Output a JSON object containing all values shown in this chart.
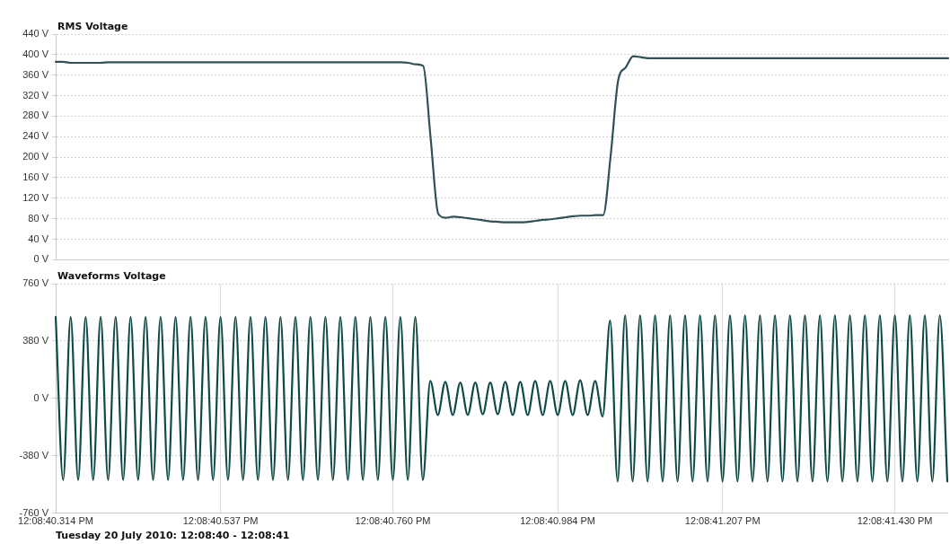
{
  "chart_data": [
    {
      "type": "line",
      "title": "RMS Voltage",
      "tick_labels": "y",
      "grid": "y",
      "marker": "none",
      "line_style": "solid",
      "categories": [
        null,
        null,
        null,
        null,
        null,
        null,
        null,
        null,
        null,
        null,
        null,
        null,
        null,
        null,
        null,
        null,
        null,
        null,
        null,
        null,
        null,
        null,
        null,
        null,
        null,
        null,
        null,
        null,
        null,
        null,
        null,
        null,
        null,
        null,
        null,
        null,
        null,
        null,
        null,
        null,
        null,
        null,
        null,
        null,
        null,
        null,
        null,
        null,
        null,
        null,
        null,
        null,
        null,
        null,
        null,
        null,
        null,
        null,
        null,
        null,
        null,
        null,
        null,
        null,
        null,
        null,
        null,
        null,
        null,
        null,
        null,
        null,
        null,
        null,
        null,
        null,
        null,
        null,
        null,
        null,
        null,
        null,
        null,
        null,
        null,
        null,
        null,
        null,
        null,
        null,
        null,
        null,
        null,
        null,
        null,
        null,
        null,
        null,
        null,
        null,
        null,
        null,
        null,
        null,
        null,
        null,
        null,
        null,
        null,
        null,
        null,
        null,
        null,
        null,
        null,
        null,
        null,
        null,
        null,
        null
      ],
      "ylim": [
        0,
        440
      ],
      "yticks": [
        {
          "value": 0,
          "label": "0 V"
        },
        {
          "value": 40,
          "label": "40 V"
        },
        {
          "value": 80,
          "label": "80 V"
        },
        {
          "value": 120,
          "label": "120 V"
        },
        {
          "value": 160,
          "label": "160 V"
        },
        {
          "value": 200,
          "label": "200 V"
        },
        {
          "value": 240,
          "label": "240 V"
        },
        {
          "value": 280,
          "label": "280 V"
        },
        {
          "value": 320,
          "label": "320 V"
        },
        {
          "value": 360,
          "label": "360 V"
        },
        {
          "value": 400,
          "label": "400 V"
        },
        {
          "value": 440,
          "label": "440 V"
        }
      ],
      "series": [
        {
          "color": "#2f5157",
          "values": [
            386,
            386,
            384,
            384,
            384,
            384,
            384,
            385,
            385,
            385,
            385,
            385,
            385,
            385,
            385,
            385,
            385,
            385,
            385,
            385,
            385,
            385,
            385,
            385,
            385,
            385,
            385,
            385,
            385,
            385,
            385,
            385,
            385,
            385,
            385,
            385,
            385,
            385,
            385,
            385,
            385,
            385,
            385,
            385,
            385,
            385,
            385,
            384,
            381,
            378,
            236,
            90,
            82,
            84,
            83,
            81,
            79,
            77,
            75,
            74,
            73,
            73,
            73,
            74,
            76,
            78,
            79,
            81,
            83,
            85,
            86,
            86,
            87,
            87,
            204,
            350,
            375,
            397,
            395,
            393,
            393,
            393,
            393,
            393,
            393,
            393,
            393,
            393,
            393,
            393,
            393,
            393,
            393,
            393,
            393,
            393,
            393,
            393,
            393,
            393,
            393,
            393,
            393,
            393,
            393,
            393,
            393,
            393,
            393,
            393,
            393,
            393,
            393,
            393,
            393,
            393,
            393,
            393,
            393,
            393
          ]
        }
      ]
    },
    {
      "type": "line",
      "title": "Waveforms Voltage",
      "xlabel": "Tuesday 20 July 2010: 12:08:40 - 12:08:41",
      "grid": true,
      "marker": "none",
      "line_style": "solid",
      "categories": [
        "12:08:40.314 PM",
        null,
        null,
        null,
        null,
        null,
        null,
        null,
        null,
        null,
        null,
        null,
        null,
        null,
        null,
        null,
        null,
        null,
        null,
        null,
        null,
        null,
        "12:08:40.537 PM",
        null,
        null,
        null,
        null,
        null,
        null,
        null,
        null,
        null,
        null,
        null,
        null,
        null,
        null,
        null,
        null,
        null,
        null,
        null,
        null,
        null,
        null,
        "12:08:40.760 PM",
        null,
        null,
        null,
        null,
        null,
        null,
        null,
        null,
        null,
        null,
        null,
        null,
        null,
        null,
        null,
        null,
        null,
        null,
        null,
        null,
        null,
        "12:08:40.984 PM",
        null,
        null,
        null,
        null,
        null,
        null,
        null,
        null,
        null,
        null,
        null,
        null,
        null,
        null,
        null,
        null,
        null,
        null,
        null,
        null,
        null,
        "12:08:41.207 PM",
        null,
        null,
        null,
        null,
        null,
        null,
        null,
        null,
        null,
        null,
        null,
        null,
        null,
        null,
        null,
        null,
        null,
        null,
        null,
        null,
        null,
        null,
        "12:08:41.430 PM",
        null,
        null,
        null,
        null,
        null,
        null,
        null
      ],
      "ylim": [
        -760,
        760
      ],
      "yticks": [
        {
          "value": -760,
          "label": "-760 V"
        },
        {
          "value": -380,
          "label": "-380 V"
        },
        {
          "value": 0,
          "label": "0 V"
        },
        {
          "value": 380,
          "label": "380 V"
        },
        {
          "value": 760,
          "label": "760 V"
        }
      ],
      "series": [
        {
          "color": "#0f4a45",
          "values": [
            540,
            -540,
            540,
            -540,
            540,
            -540,
            540,
            -540,
            540,
            -540,
            540,
            -540,
            540,
            -540,
            540,
            -540,
            540,
            -540,
            540,
            -540,
            540,
            -540,
            540,
            -540,
            540,
            -540,
            540,
            -540,
            540,
            -540,
            540,
            -540,
            540,
            -540,
            540,
            -540,
            540,
            -540,
            540,
            -540,
            540,
            -540,
            540,
            -540,
            540,
            -540,
            540,
            -540,
            540,
            -540,
            115,
            -110,
            110,
            -110,
            105,
            -110,
            105,
            -105,
            105,
            -105,
            110,
            -110,
            110,
            -110,
            115,
            -110,
            115,
            -110,
            115,
            -110,
            120,
            -110,
            115,
            -120,
            515,
            -550,
            550,
            -550,
            550,
            -550,
            550,
            -550,
            550,
            -550,
            550,
            -550,
            550,
            -550,
            550,
            -550,
            550,
            -550,
            550,
            -550,
            550,
            -550,
            550,
            -550,
            550,
            -550,
            550,
            -550,
            550,
            -550,
            550,
            -550,
            550,
            -550,
            550,
            -550,
            550,
            -550,
            550,
            -550,
            550,
            -550,
            550,
            -550,
            550,
            -550
          ]
        }
      ]
    }
  ]
}
